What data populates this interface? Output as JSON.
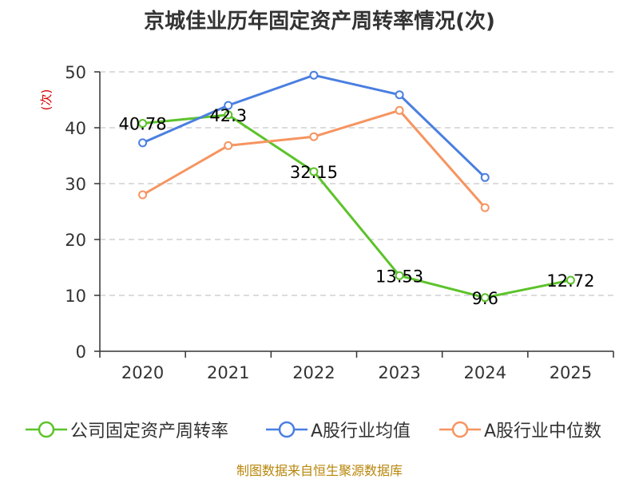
{
  "chart_data": {
    "type": "line",
    "title": "京城佳业历年固定资产周转率情况(次)",
    "ylabel": "(次)",
    "xlabel": "",
    "ylim": [
      0,
      50
    ],
    "yticks": [
      0,
      10,
      20,
      30,
      40,
      50
    ],
    "categories": [
      "2020",
      "2021",
      "2022",
      "2023",
      "2024",
      "2025"
    ],
    "series": [
      {
        "name": "公司固定资产周转率",
        "color": "#5cc32a",
        "values": [
          40.78,
          42.3,
          32.15,
          13.53,
          9.6,
          12.72
        ],
        "labels": [
          "40.78",
          "42.3",
          "32.15",
          "13.53",
          "9.6",
          "12.72"
        ]
      },
      {
        "name": "A股行业均值",
        "color": "#4a7fe0",
        "values": [
          37.3,
          44.0,
          49.4,
          45.9,
          31.1,
          null
        ]
      },
      {
        "name": "A股行业中位数",
        "color": "#f69460",
        "values": [
          28.0,
          36.8,
          38.4,
          43.1,
          25.7,
          null
        ]
      }
    ],
    "grid": "dashed horizontal",
    "legend_position": "bottom"
  },
  "source": "制图数据来自恒生聚源数据库"
}
